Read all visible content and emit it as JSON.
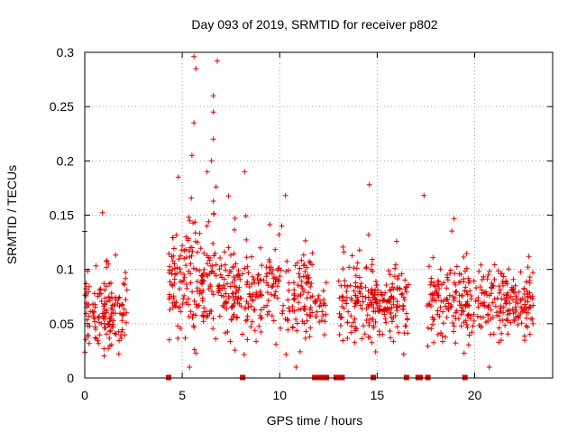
{
  "chart_data": {
    "type": "scatter",
    "title": "Day 093 of 2019, SRMTID for receiver p802",
    "xlabel": "GPS time / hours",
    "ylabel": "SRMTID / TECUs",
    "xlim": [
      0,
      24
    ],
    "ylim": [
      0,
      0.3
    ],
    "xticks": [
      0,
      5,
      10,
      15,
      20
    ],
    "xtick_labels": [
      "0",
      "5",
      "10",
      "15",
      "20"
    ],
    "yticks": [
      0,
      0.05,
      0.1,
      0.15,
      0.2,
      0.25,
      0.3
    ],
    "ytick_labels": [
      "0",
      "0.05",
      "0.1",
      "0.15",
      "0.2",
      "0.25",
      "0.3"
    ],
    "grid": true,
    "marker": "plus",
    "series_color": "#e00000",
    "zero_markers_x": [
      4.3,
      8.1,
      11.8,
      12.0,
      12.2,
      12.4,
      12.9,
      13.0,
      13.2,
      14.8,
      16.5,
      17.1,
      17.2,
      17.6,
      19.5
    ],
    "clusters": [
      {
        "x": [
          0.0,
          2.2
        ],
        "center": 0.06,
        "spread": 0.025,
        "count": 150
      },
      {
        "x": [
          4.3,
          7.0
        ],
        "center": 0.09,
        "spread": 0.035,
        "count": 190
      },
      {
        "x": [
          7.0,
          9.0
        ],
        "center": 0.075,
        "spread": 0.025,
        "count": 130
      },
      {
        "x": [
          9.0,
          11.7
        ],
        "center": 0.075,
        "spread": 0.028,
        "count": 150
      },
      {
        "x": [
          11.8,
          12.4
        ],
        "center": 0.065,
        "spread": 0.015,
        "count": 25
      },
      {
        "x": [
          13.0,
          14.8
        ],
        "center": 0.07,
        "spread": 0.025,
        "count": 110
      },
      {
        "x": [
          14.8,
          16.6
        ],
        "center": 0.065,
        "spread": 0.022,
        "count": 120
      },
      {
        "x": [
          17.5,
          19.6
        ],
        "center": 0.07,
        "spread": 0.025,
        "count": 130
      },
      {
        "x": [
          19.6,
          23.0
        ],
        "center": 0.065,
        "spread": 0.02,
        "count": 210
      }
    ],
    "notable_points": [
      {
        "x": 5.6,
        "y": 0.296
      },
      {
        "x": 6.8,
        "y": 0.292
      },
      {
        "x": 5.7,
        "y": 0.285
      },
      {
        "x": 6.6,
        "y": 0.26
      },
      {
        "x": 6.6,
        "y": 0.245
      },
      {
        "x": 5.6,
        "y": 0.235
      },
      {
        "x": 6.6,
        "y": 0.22
      },
      {
        "x": 5.5,
        "y": 0.205
      },
      {
        "x": 6.5,
        "y": 0.2
      },
      {
        "x": 4.8,
        "y": 0.185
      },
      {
        "x": 8.2,
        "y": 0.19
      },
      {
        "x": 14.6,
        "y": 0.178
      },
      {
        "x": 17.4,
        "y": 0.168
      },
      {
        "x": 10.3,
        "y": 0.168
      },
      {
        "x": 0.0,
        "y": 0.135
      }
    ]
  }
}
